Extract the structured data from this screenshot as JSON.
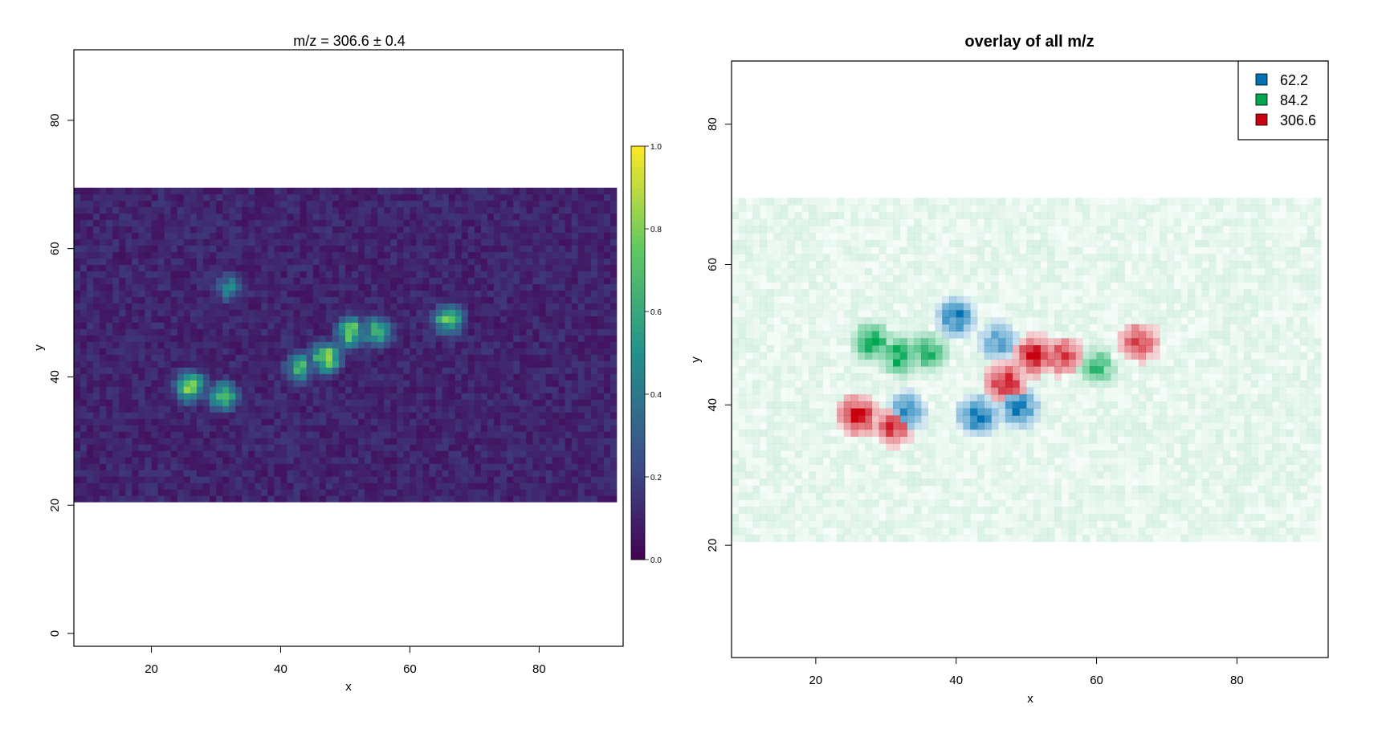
{
  "chart_data": [
    {
      "type": "heatmap",
      "title": "m/z = 306.6 ± 0.4",
      "xlabel": "x",
      "ylabel": "y",
      "xlim": [
        8,
        93
      ],
      "ylim": [
        -2,
        91
      ],
      "xticks": [
        20,
        40,
        60,
        80
      ],
      "yticks": [
        0,
        20,
        40,
        60,
        80
      ],
      "grid": false,
      "data_extent": {
        "x": [
          8,
          92
        ],
        "y": [
          20.5,
          69.5
        ]
      },
      "colormap": "viridis",
      "colormap_stops": [
        "#440154",
        "#3b528b",
        "#21918c",
        "#5ec962",
        "#fde725"
      ],
      "colorbar": {
        "min": 0.0,
        "max": 1.0,
        "ticks": [
          "0.0",
          "0.2",
          "0.4",
          "0.6",
          "0.8",
          "1.0"
        ]
      },
      "hotspots": [
        {
          "x": 26,
          "y": 38.5,
          "intensity": 1.0
        },
        {
          "x": 31,
          "y": 37,
          "intensity": 0.85
        },
        {
          "x": 47,
          "y": 43,
          "intensity": 1.0
        },
        {
          "x": 51,
          "y": 47,
          "intensity": 0.95
        },
        {
          "x": 55,
          "y": 47,
          "intensity": 0.8
        },
        {
          "x": 43,
          "y": 41.5,
          "intensity": 0.75
        },
        {
          "x": 32,
          "y": 54,
          "intensity": 0.55
        },
        {
          "x": 66,
          "y": 49,
          "intensity": 0.9
        }
      ]
    },
    {
      "type": "heatmap",
      "title": "overlay of all m/z",
      "xlabel": "x",
      "ylabel": "y",
      "xlim": [
        8,
        93
      ],
      "ylim": [
        4,
        89
      ],
      "xticks": [
        20,
        40,
        60,
        80
      ],
      "yticks": [
        20,
        40,
        60,
        80
      ],
      "grid": false,
      "data_extent": {
        "x": [
          8,
          92
        ],
        "y": [
          20.5,
          69.5
        ]
      },
      "legend_position": "top-right",
      "series": [
        {
          "name": "62.2",
          "color": "#0072B2",
          "hotspots": [
            {
              "x": 40,
              "y": 52.5,
              "intensity": 0.9
            },
            {
              "x": 43,
              "y": 38.5,
              "intensity": 1.0
            },
            {
              "x": 49,
              "y": 39.5,
              "intensity": 0.9
            },
            {
              "x": 33,
              "y": 39,
              "intensity": 0.8
            },
            {
              "x": 46,
              "y": 49,
              "intensity": 0.7
            }
          ]
        },
        {
          "name": "84.2",
          "color": "#00A651",
          "hotspots": [
            {
              "x": 28,
              "y": 49,
              "intensity": 1.0
            },
            {
              "x": 32,
              "y": 47,
              "intensity": 1.0
            },
            {
              "x": 36,
              "y": 47.5,
              "intensity": 0.85
            },
            {
              "x": 60,
              "y": 45.5,
              "intensity": 0.75
            }
          ]
        },
        {
          "name": "306.6",
          "color": "#C8000F",
          "hotspots": [
            {
              "x": 26,
              "y": 38.5,
              "intensity": 1.0
            },
            {
              "x": 31,
              "y": 37,
              "intensity": 0.8
            },
            {
              "x": 47,
              "y": 43,
              "intensity": 1.0
            },
            {
              "x": 51,
              "y": 47,
              "intensity": 0.95
            },
            {
              "x": 55,
              "y": 47,
              "intensity": 0.8
            },
            {
              "x": 66,
              "y": 49,
              "intensity": 0.8
            }
          ]
        }
      ]
    }
  ]
}
